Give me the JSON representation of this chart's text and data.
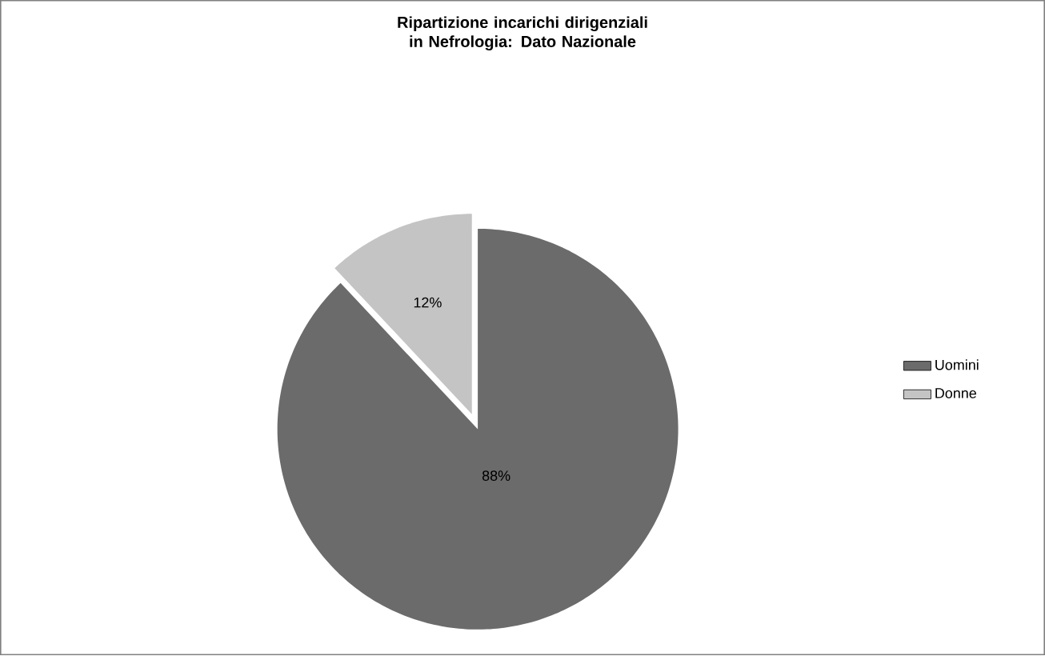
{
  "chart_data": {
    "type": "pie",
    "title": "Ripartizione incarichi dirigenziali in Nefrologia: Dato Nazionale",
    "categories": [
      "Uomini",
      "Donne"
    ],
    "values": [
      88,
      12
    ],
    "colors": [
      "#6b6b6b",
      "#c4c4c4"
    ],
    "value_labels": [
      "88%",
      "12%"
    ],
    "legend": "right"
  }
}
